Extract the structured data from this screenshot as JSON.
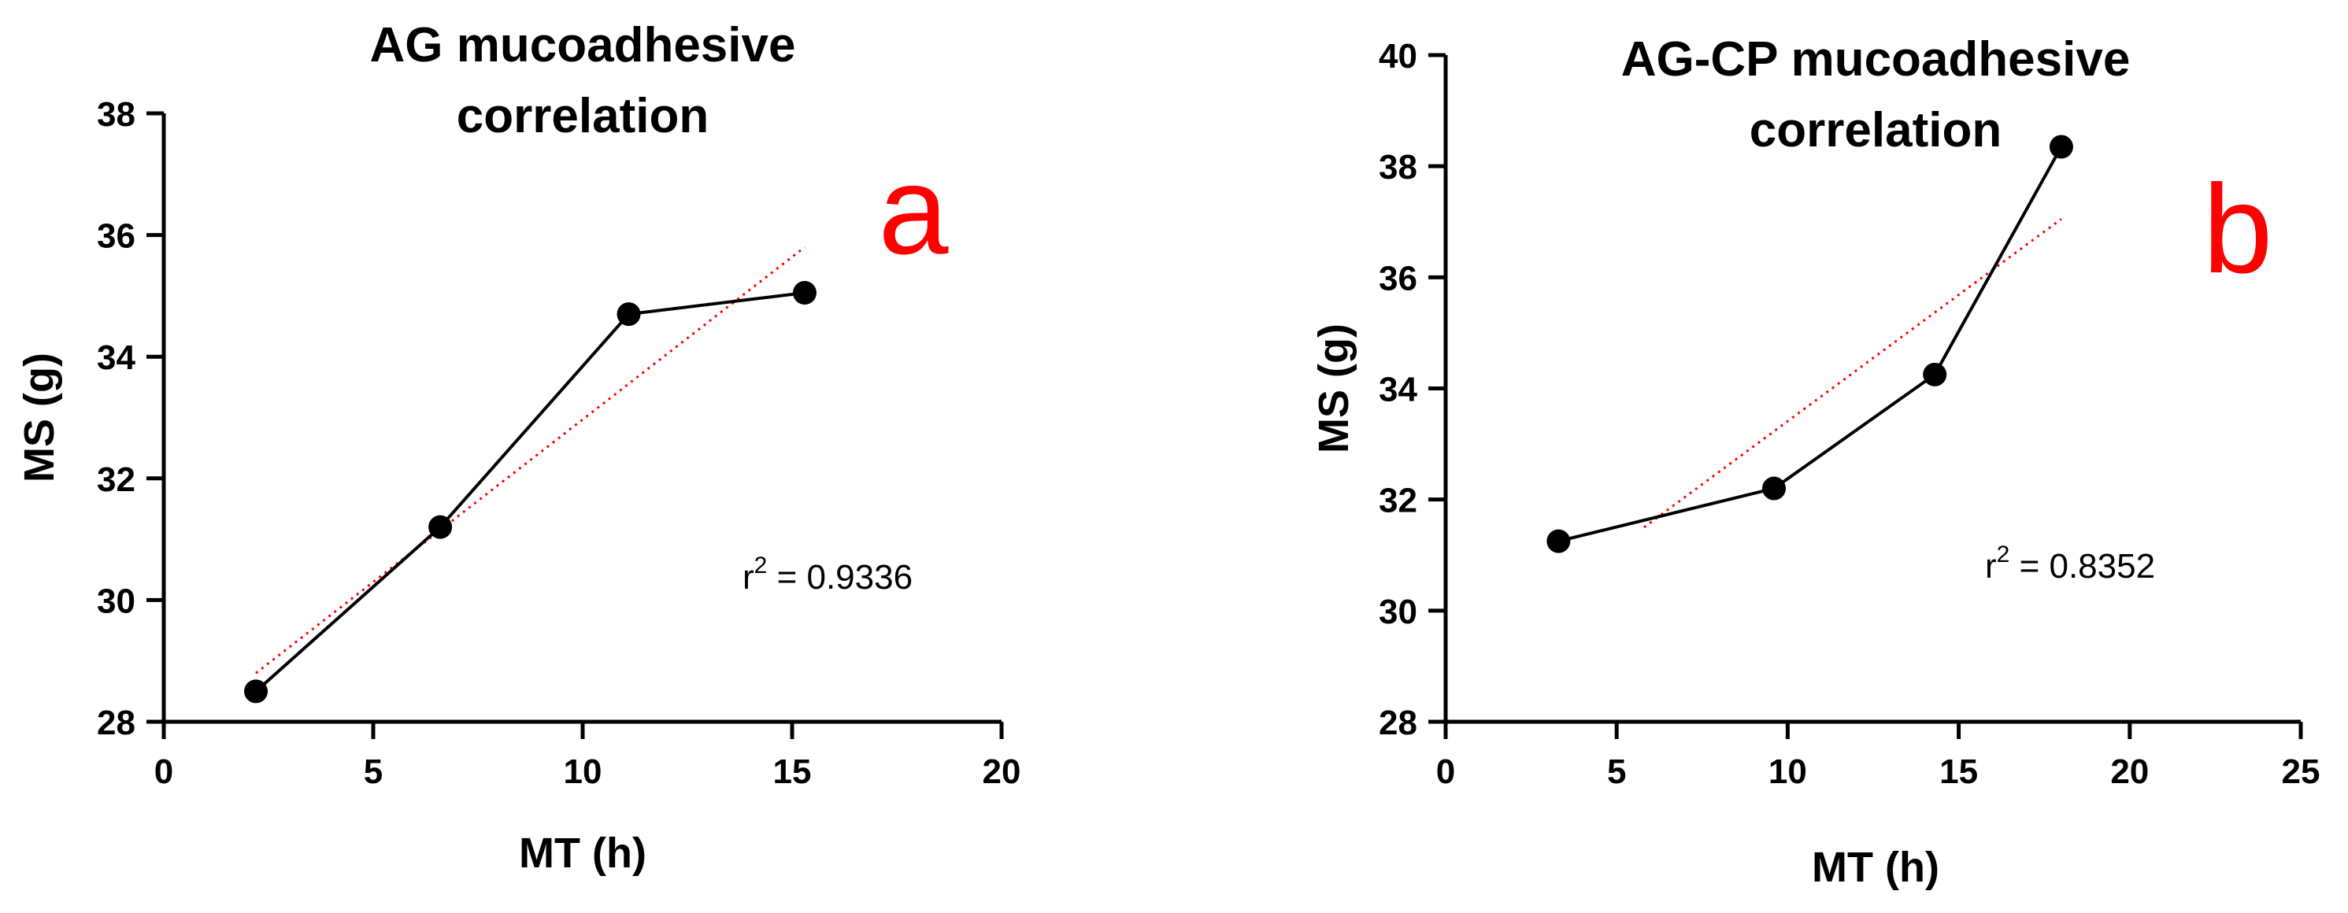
{
  "chart_data": [
    {
      "type": "scatter",
      "title": "AG mucoadhesive correlation",
      "title_lines": [
        "AG mucoadhesive",
        "correlation"
      ],
      "panel_label": "a",
      "xlabel": "MT (h)",
      "ylabel": "MS (g)",
      "xlim": [
        0,
        20
      ],
      "ylim": [
        28,
        38
      ],
      "xticks": [
        0,
        5,
        10,
        15,
        20
      ],
      "yticks": [
        28,
        30,
        32,
        34,
        36,
        38
      ],
      "series": [
        {
          "x": [
            2.2,
            6.6,
            11.1,
            15.3
          ],
          "y": [
            28.5,
            31.2,
            34.7,
            35.05
          ]
        }
      ],
      "trendline": {
        "x": [
          2.2,
          15.3
        ],
        "y": [
          28.8,
          35.8
        ]
      },
      "annotation": {
        "prefix": "r",
        "sup": "2",
        "suffix": " = 0.9336",
        "r2": 0.9336
      },
      "grid": false,
      "colors": {
        "points": "#000000",
        "trendline": "#ff0000",
        "panel_label": "#ff0000"
      }
    },
    {
      "type": "scatter",
      "title": "AG-CP mucoadhesive correlation",
      "title_lines": [
        "AG-CP mucoadhesive",
        "correlation"
      ],
      "panel_label": "b",
      "xlabel": "MT (h)",
      "ylabel": "MS (g)",
      "xlim": [
        0,
        25
      ],
      "ylim": [
        28,
        40
      ],
      "xticks": [
        0,
        5,
        10,
        15,
        20,
        25
      ],
      "yticks": [
        28,
        30,
        32,
        34,
        36,
        38,
        40
      ],
      "series": [
        {
          "x": [
            3.3,
            9.6,
            14.3,
            18.0
          ],
          "y": [
            31.25,
            32.2,
            34.25,
            38.35
          ]
        }
      ],
      "trendline": {
        "x": [
          5.8,
          18.0
        ],
        "y": [
          31.5,
          37.05
        ]
      },
      "annotation": {
        "prefix": "r",
        "sup": "2",
        "suffix": " = 0.8352",
        "r2": 0.8352
      },
      "grid": false,
      "colors": {
        "points": "#000000",
        "trendline": "#ff0000",
        "panel_label": "#ff0000"
      }
    }
  ]
}
